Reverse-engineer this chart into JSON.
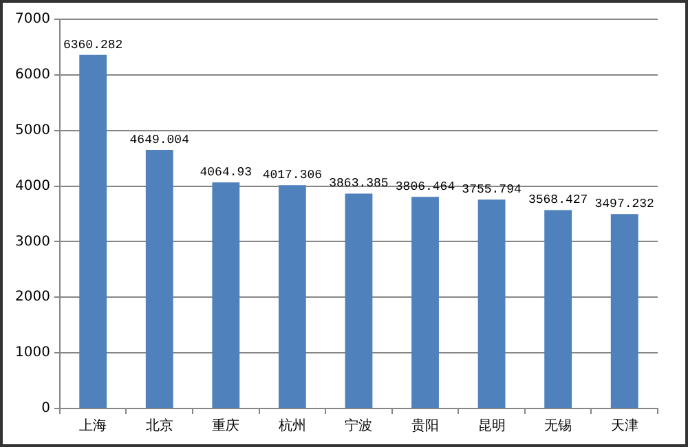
{
  "chart_data": {
    "type": "bar",
    "categories": [
      "上海",
      "北京",
      "重庆",
      "杭州",
      "宁波",
      "贵阳",
      "昆明",
      "无锡",
      "天津"
    ],
    "values": [
      6360.282,
      4649.004,
      4064.93,
      4017.306,
      3863.385,
      3806.464,
      3755.794,
      3568.427,
      3497.232
    ],
    "color": "#4f81bd",
    "ylim": [
      0,
      7000
    ],
    "yticks": [
      0,
      1000,
      2000,
      3000,
      4000,
      5000,
      6000,
      7000
    ],
    "grid": "y",
    "data_labels": true
  }
}
